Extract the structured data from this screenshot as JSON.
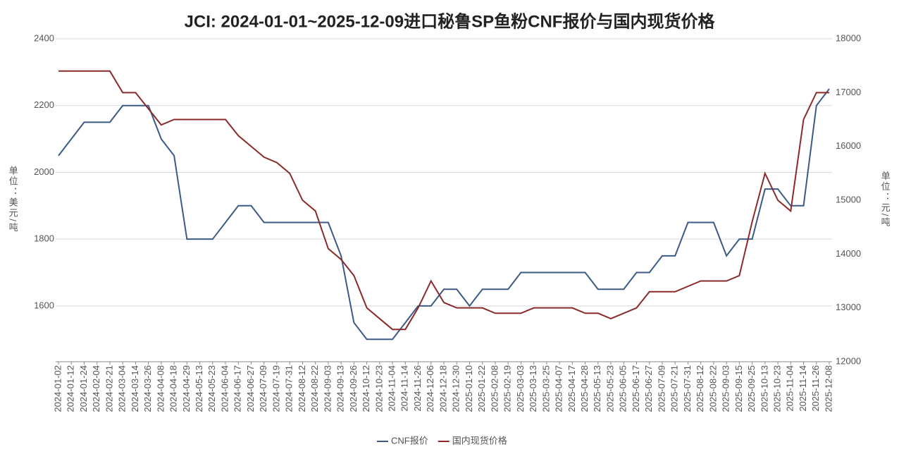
{
  "chart_data": {
    "type": "line",
    "title": "JCI: 2024-01-01~2025-12-09进口秘鲁SP鱼粉CNF报价与国内现货价格",
    "y_label": "单位：美元/吨",
    "y2_label": "单位：元/吨",
    "categories": [
      "2024-01-02",
      "2024-01-12",
      "2024-01-24",
      "2024-02-04",
      "2024-02-21",
      "2024-03-04",
      "2024-03-14",
      "2024-03-26",
      "2024-04-08",
      "2024-04-18",
      "2024-04-29",
      "2024-05-13",
      "2024-05-23",
      "2024-06-04",
      "2024-06-17",
      "2024-06-27",
      "2024-07-09",
      "2024-07-19",
      "2024-07-31",
      "2024-08-12",
      "2024-08-22",
      "2024-09-03",
      "2024-09-13",
      "2024-09-26",
      "2024-10-12",
      "2024-10-23",
      "2024-11-04",
      "2024-11-14",
      "2024-11-26",
      "2024-12-06",
      "2024-12-18",
      "2024-12-30",
      "2025-01-10",
      "2025-01-22",
      "2025-02-08",
      "2025-02-19",
      "2025-03-03",
      "2025-03-13",
      "2025-03-25",
      "2025-04-07",
      "2025-04-17",
      "2025-04-28",
      "2025-05-13",
      "2025-05-23",
      "2025-06-05",
      "2025-06-17",
      "2025-06-27",
      "2025-07-09",
      "2025-07-21",
      "2025-07-31",
      "2025-08-12",
      "2025-08-22",
      "2025-09-03",
      "2025-09-15",
      "2025-09-25",
      "2025-10-13",
      "2025-10-23",
      "2025-11-04",
      "2025-11-14",
      "2025-11-26",
      "2025-12-08"
    ],
    "series": [
      {
        "name": "CNF报价",
        "color": "#3b5a86",
        "values": [
          2050,
          2100,
          2150,
          2150,
          2150,
          2200,
          2200,
          2200,
          2100,
          2050,
          1800,
          1800,
          1800,
          1850,
          1900,
          1900,
          1850,
          1850,
          1850,
          1850,
          1850,
          1850,
          1750,
          1550,
          1500,
          1500,
          1500,
          1550,
          1600,
          1600,
          1650,
          1650,
          1600,
          1650,
          1650,
          1650,
          1700,
          1700,
          1700,
          1700,
          1700,
          1700,
          1650,
          1650,
          1650,
          1700,
          1700,
          1750,
          1750,
          1850,
          1850,
          1850,
          1750,
          1800,
          1800,
          1950,
          1950,
          1900,
          1900,
          2200,
          2250
        ]
      },
      {
        "name": "国内现货价格",
        "color": "#8b2a2a",
        "axis": "y2",
        "values": [
          17400,
          17400,
          17400,
          17400,
          17400,
          17000,
          17000,
          16700,
          16400,
          16500,
          16500,
          16500,
          16500,
          16500,
          16200,
          16000,
          15800,
          15700,
          15500,
          15000,
          14800,
          14100,
          13900,
          13600,
          13000,
          12800,
          12600,
          12600,
          13000,
          13500,
          13100,
          13000,
          13000,
          13000,
          12900,
          12900,
          12900,
          13000,
          13000,
          13000,
          13000,
          12900,
          12900,
          12800,
          12900,
          13000,
          13300,
          13300,
          13300,
          13400,
          13500,
          13500,
          13500,
          13600,
          14600,
          15500,
          15000,
          14800,
          16500,
          17000,
          17000
        ]
      }
    ],
    "ylim": [
      1433,
      2400
    ],
    "yticks": [
      1600,
      1800,
      2000,
      2200,
      2400
    ],
    "y2lim": [
      12000,
      18000
    ],
    "y2ticks": [
      12000,
      13000,
      14000,
      15000,
      16000,
      17000,
      18000
    ],
    "grid": true,
    "legend": "bottom"
  }
}
